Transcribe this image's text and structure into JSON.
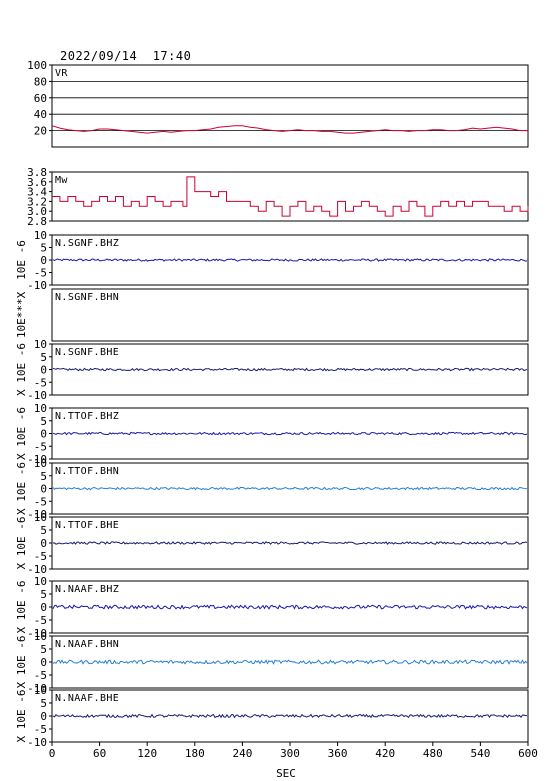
{
  "header": {
    "datetime": "2022/09/14  17:40"
  },
  "chart_data": {
    "type": "line",
    "xlabel": "SEC",
    "x_ticks": [
      0,
      60,
      120,
      180,
      240,
      300,
      360,
      420,
      480,
      540,
      600
    ],
    "xlim": [
      0,
      600
    ],
    "panels": [
      {
        "name": "VR",
        "ylim": [
          0,
          100
        ],
        "y_ticks": [
          20,
          40,
          60,
          80,
          100
        ],
        "grid": true,
        "color": "#cc0033",
        "series": {
          "x": [
            0,
            10,
            20,
            30,
            40,
            50,
            60,
            70,
            80,
            90,
            100,
            110,
            120,
            130,
            140,
            150,
            160,
            170,
            180,
            190,
            200,
            210,
            220,
            230,
            240,
            250,
            260,
            270,
            280,
            290,
            300,
            310,
            320,
            330,
            340,
            350,
            360,
            370,
            380,
            390,
            400,
            410,
            420,
            430,
            440,
            450,
            460,
            470,
            480,
            490,
            500,
            510,
            520,
            530,
            540,
            550,
            560,
            570,
            580,
            590,
            600
          ],
          "y": [
            26,
            23,
            21,
            20,
            19,
            20,
            22,
            22,
            21,
            20,
            19,
            18,
            17,
            18,
            19,
            18,
            19,
            20,
            20,
            21,
            22,
            24,
            25,
            26,
            26,
            24,
            23,
            21,
            20,
            19,
            20,
            21,
            20,
            20,
            19,
            19,
            18,
            17,
            17,
            18,
            19,
            20,
            21,
            20,
            20,
            19,
            20,
            20,
            21,
            21,
            20,
            20,
            21,
            23,
            22,
            23,
            24,
            23,
            22,
            20,
            20
          ]
        }
      },
      {
        "name": "Mw",
        "ylim": [
          2.8,
          3.8
        ],
        "y_ticks": [
          2.8,
          3.0,
          3.2,
          3.4,
          3.6,
          3.8
        ],
        "grid": false,
        "color": "#cc0033",
        "series": {
          "x": [
            0,
            10,
            20,
            30,
            40,
            50,
            60,
            70,
            80,
            90,
            100,
            110,
            120,
            130,
            140,
            150,
            160,
            165,
            170,
            180,
            190,
            200,
            210,
            220,
            230,
            240,
            250,
            260,
            270,
            280,
            290,
            300,
            310,
            320,
            330,
            340,
            350,
            360,
            370,
            380,
            390,
            400,
            410,
            420,
            430,
            440,
            450,
            460,
            470,
            480,
            490,
            500,
            510,
            520,
            530,
            540,
            550,
            560,
            570,
            580,
            590,
            600
          ],
          "y": [
            3.3,
            3.2,
            3.3,
            3.2,
            3.1,
            3.2,
            3.3,
            3.2,
            3.3,
            3.1,
            3.2,
            3.1,
            3.3,
            3.2,
            3.1,
            3.2,
            3.2,
            3.1,
            3.7,
            3.4,
            3.4,
            3.3,
            3.4,
            3.2,
            3.2,
            3.2,
            3.1,
            3.0,
            3.2,
            3.1,
            2.9,
            3.1,
            3.2,
            3.0,
            3.1,
            3.0,
            2.9,
            3.2,
            3.0,
            3.1,
            3.2,
            3.1,
            3.0,
            2.9,
            3.1,
            3.0,
            3.2,
            3.1,
            2.9,
            3.1,
            3.2,
            3.1,
            3.2,
            3.1,
            3.2,
            3.2,
            3.1,
            3.1,
            3.0,
            3.1,
            3.0,
            3.1
          ]
        }
      },
      {
        "name": "N.SGNF.BHZ",
        "ylim": [
          -10,
          10
        ],
        "y_ticks": [
          -10,
          -5,
          0,
          5,
          10
        ],
        "yaxis_label": "10E -6",
        "has_trace": true,
        "color": "#1a1aa8",
        "amplitude": 0.45
      },
      {
        "name": "N.SGNF.BHN",
        "ylim": null,
        "y_ticks": [],
        "yaxis_label": "10E***X",
        "has_trace": false
      },
      {
        "name": "N.SGNF.BHE",
        "ylim": [
          -10,
          10
        ],
        "y_ticks": [
          -10,
          -5,
          0,
          5,
          10
        ],
        "yaxis_label": "X 10E -6",
        "has_trace": true,
        "color": "#1a1a70",
        "amplitude": 0.45
      },
      {
        "name": "N.TTOF.BHZ",
        "ylim": [
          -10,
          10
        ],
        "y_ticks": [
          -10,
          -5,
          0,
          5,
          10
        ],
        "yaxis_label": "X 10E -6",
        "has_trace": true,
        "color": "#1a1aa8",
        "amplitude": 0.45
      },
      {
        "name": "N.TTOF.BHN",
        "ylim": [
          -10,
          10
        ],
        "y_ticks": [
          -10,
          -5,
          0,
          5,
          10
        ],
        "yaxis_label": "X 10E -6",
        "has_trace": true,
        "color": "#2a7fd0",
        "amplitude": 0.45
      },
      {
        "name": "N.TTOF.BHE",
        "ylim": [
          -10,
          10
        ],
        "y_ticks": [
          -10,
          -5,
          0,
          5,
          10
        ],
        "yaxis_label": "X 10E -6",
        "has_trace": true,
        "color": "#1a1a70",
        "amplitude": 0.45
      },
      {
        "name": "N.NAAF.BHZ",
        "ylim": [
          -10,
          10
        ],
        "y_ticks": [
          -10,
          -5,
          0,
          5,
          10
        ],
        "yaxis_label": "X 10E -6",
        "has_trace": true,
        "color": "#1a1aa8",
        "amplitude": 0.7
      },
      {
        "name": "N.NAAF.BHN",
        "ylim": [
          -10,
          10
        ],
        "y_ticks": [
          -10,
          -5,
          0,
          5,
          10
        ],
        "yaxis_label": "X 10E -6",
        "has_trace": true,
        "color": "#2a7fd0",
        "amplitude": 0.7
      },
      {
        "name": "N.NAAF.BHE",
        "ylim": [
          -10,
          10
        ],
        "y_ticks": [
          -10,
          -5,
          0,
          5,
          10
        ],
        "yaxis_label": "X 10E -6",
        "has_trace": true,
        "color": "#1a1a70",
        "amplitude": 0.55
      }
    ]
  }
}
